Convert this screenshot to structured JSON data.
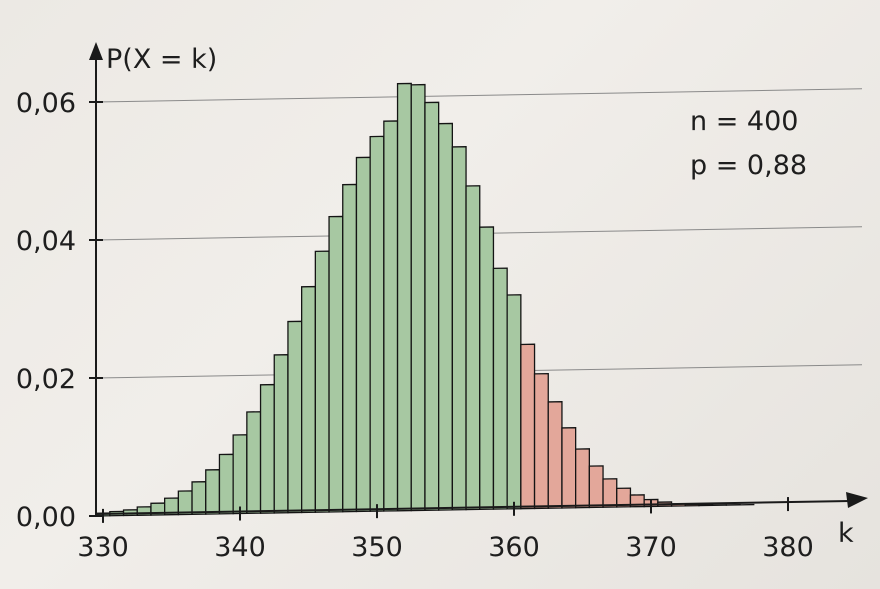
{
  "chart_data": {
    "type": "bar",
    "ylabel": "P(X = k)",
    "xlabel": "k",
    "annotations": [
      "n = 400",
      "p = 0,88"
    ],
    "xlim": [
      330,
      383
    ],
    "ylim": [
      0,
      0.067
    ],
    "x_ticks": [
      330,
      340,
      350,
      360,
      370,
      380
    ],
    "x_tick_labels": [
      "330",
      "340",
      "350",
      "360",
      "370",
      "380"
    ],
    "y_ticks": [
      0,
      0.02,
      0.04,
      0.06
    ],
    "y_tick_labels": [
      "0,00",
      "0,02",
      "0,04",
      "0,06"
    ],
    "grid": true,
    "highlight_from_k": 361,
    "colors": {
      "main": "#a7c8a2",
      "highlight": "#e3a79a",
      "axis": "#1a1a1a",
      "grid": "#8a8a8a"
    },
    "x": [
      330,
      331,
      332,
      333,
      334,
      335,
      336,
      337,
      338,
      339,
      340,
      341,
      342,
      343,
      344,
      345,
      346,
      347,
      348,
      349,
      350,
      351,
      352,
      353,
      354,
      355,
      356,
      357,
      358,
      359,
      360,
      361,
      362,
      363,
      364,
      365,
      366,
      367,
      368,
      369,
      370,
      371,
      372,
      373,
      374,
      375,
      376,
      377,
      378,
      379,
      380
    ],
    "values": [
      0.0004,
      0.0006,
      0.0008,
      0.0012,
      0.0017,
      0.0024,
      0.0034,
      0.0047,
      0.0064,
      0.0086,
      0.0114,
      0.0147,
      0.0186,
      0.0229,
      0.0277,
      0.0327,
      0.0378,
      0.0428,
      0.0474,
      0.0513,
      0.0543,
      0.0565,
      0.0619,
      0.0617,
      0.0591,
      0.056,
      0.0526,
      0.0469,
      0.0409,
      0.0349,
      0.031,
      0.0238,
      0.0195,
      0.0154,
      0.0116,
      0.0085,
      0.006,
      0.0041,
      0.0027,
      0.0017,
      0.001,
      0.0006,
      0.0003,
      0.0002,
      0.0001,
      5e-05,
      3e-05,
      1e-05,
      0,
      0,
      0
    ]
  }
}
